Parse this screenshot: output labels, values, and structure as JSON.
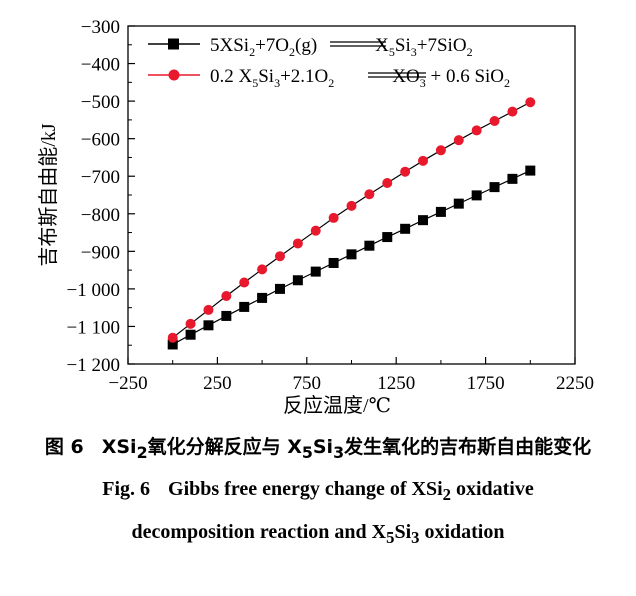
{
  "chart_data": {
    "type": "line",
    "xlabel": "反应温度/℃",
    "ylabel": "吉布斯自由能/kJ",
    "xlim": [
      -250,
      2250
    ],
    "ylim": [
      -1200,
      -300
    ],
    "xticks": [
      -250,
      250,
      750,
      1250,
      1750,
      2250
    ],
    "yticks": [
      -300,
      -400,
      -500,
      -600,
      -700,
      -800,
      -900,
      -1000,
      -1100,
      -1200
    ],
    "xtick_labels": [
      "−250",
      "250",
      "750",
      "1250",
      "1750",
      "2250"
    ],
    "ytick_labels": [
      "−300",
      "−400",
      "−500",
      "−600",
      "−700",
      "−800",
      "−900",
      "−1 000",
      "−1 100",
      "−1 200"
    ],
    "legend_position": "top-left",
    "grid": false,
    "x": [
      0,
      100,
      200,
      300,
      400,
      500,
      600,
      700,
      800,
      900,
      1000,
      1100,
      1200,
      1300,
      1400,
      1500,
      1600,
      1700,
      1800,
      1900,
      2000
    ],
    "series": [
      {
        "name": "5XSi2+7O2(g)══X5Si3+7SiO2",
        "marker": "square",
        "color": "#000000",
        "values": [
          -1148,
          -1122,
          -1097,
          -1072,
          -1048,
          -1024,
          -1000,
          -977,
          -954,
          -931,
          -908,
          -885,
          -862,
          -840,
          -817,
          -795,
          -773,
          -751,
          -729,
          -707,
          -685
        ]
      },
      {
        "name": "0.2 X5Si3+2.1O2══XO3 + 0.6 SiO2",
        "marker": "circle",
        "color": "#e8192c",
        "values": [
          -1130,
          -1093,
          -1056,
          -1019,
          -983,
          -948,
          -913,
          -879,
          -845,
          -811,
          -779,
          -748,
          -718,
          -688,
          -659,
          -631,
          -604,
          -578,
          -553,
          -528,
          -503
        ]
      }
    ]
  },
  "legend": {
    "series1": {
      "p1": "5XSi",
      "s1": "2",
      "p2": "+7O",
      "s2": "2",
      "p3": "(g)",
      "p4": "X",
      "s4": "5",
      "p5": "Si",
      "s5": "3",
      "p6": "+7SiO",
      "s6": "2"
    },
    "series2": {
      "p1": "0.2 X",
      "s1": "5",
      "p2": "Si",
      "s2": "3",
      "p3": "+2.1O",
      "s3": "2",
      "p4": "XO",
      "s4": "3",
      "p5": " + 0.6 SiO",
      "s5": "2"
    }
  },
  "caption": {
    "cn_num": "图 6",
    "cn_p1": "XSi",
    "cn_s1": "2",
    "cn_p2": "氧化分解反应与 X",
    "cn_s2": "5",
    "cn_p3": "Si",
    "cn_s3": "3",
    "cn_p4": "发生氧化的吉布斯自由能变化",
    "en_num": "Fig. 6",
    "en1_p1": "Gibbs free energy change of XSi",
    "en1_s1": "2",
    "en1_p2": " oxidative",
    "en2_p1": "decomposition reaction and X",
    "en2_s1": "5",
    "en2_p2": "Si",
    "en2_s2": "3",
    "en2_p3": " oxidation"
  }
}
